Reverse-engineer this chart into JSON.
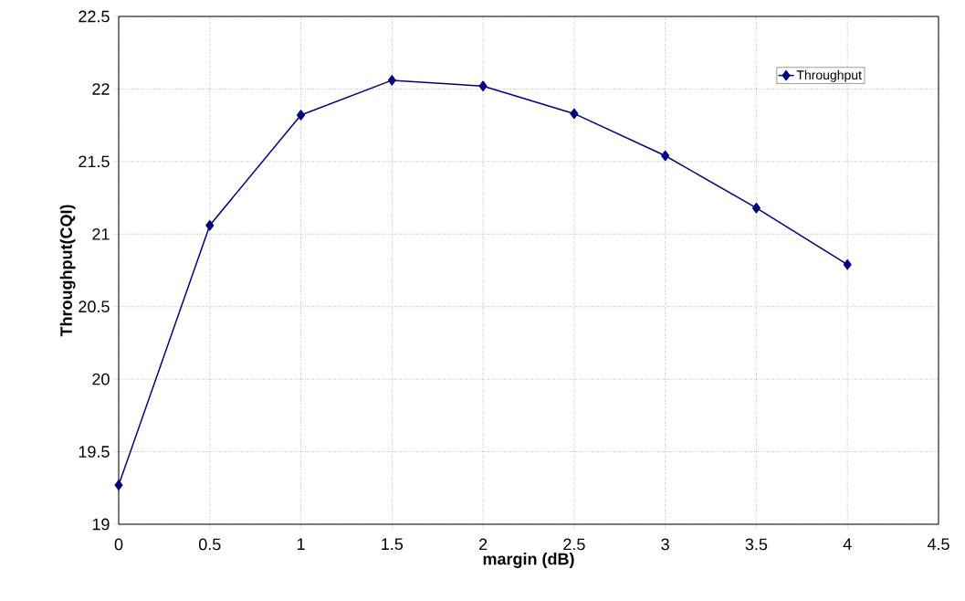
{
  "chart_data": {
    "type": "line",
    "xlabel": "margin (dB)",
    "ylabel": "Throughput(CQI)",
    "x": [
      0,
      0.5,
      1,
      1.5,
      2,
      2.5,
      3,
      3.5,
      4
    ],
    "series": [
      {
        "name": "Throughput",
        "color": "#000080",
        "values": [
          19.27,
          21.06,
          21.82,
          22.06,
          22.02,
          21.83,
          21.54,
          21.18,
          20.79
        ]
      }
    ],
    "xlim": [
      0,
      4.5
    ],
    "xticks": [
      0,
      0.5,
      1,
      1.5,
      2,
      2.5,
      3,
      3.5,
      4,
      4.5
    ],
    "ylim": [
      19,
      22.5
    ],
    "yticks": [
      19,
      19.5,
      20,
      20.5,
      21,
      21.5,
      22,
      22.5
    ],
    "grid": true,
    "legend": "top right",
    "marker": "diamond",
    "line_style": "solid"
  }
}
